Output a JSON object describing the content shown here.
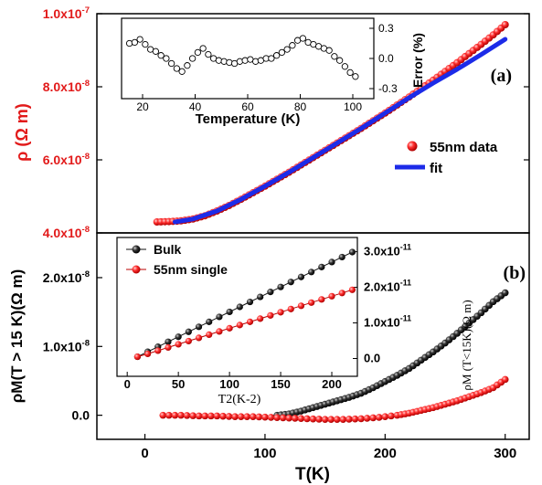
{
  "chart_data": [
    {
      "panel": "(a)",
      "type": "scatter",
      "ylabel": "ρ (Ω m)",
      "y_ticks": [
        "4.0x10-8",
        "6.0x10-8",
        "8.0x10-8",
        "1.0x10-7"
      ],
      "ylim": [
        4e-08,
        1e-07
      ],
      "xlim": [
        -40,
        320
      ],
      "legend": {
        "placement": "right",
        "entries": [
          "55nm data",
          "fit"
        ]
      },
      "series": [
        {
          "name": "55nm data",
          "color": "#ff2a2a",
          "marker": "sphere",
          "x": [
            10,
            20,
            30,
            40,
            50,
            60,
            70,
            80,
            90,
            100,
            110,
            120,
            130,
            140,
            150,
            160,
            170,
            180,
            190,
            200,
            210,
            220,
            230,
            240,
            250,
            260,
            270,
            280,
            290,
            300
          ],
          "y": [
            4.3e-08,
            4.31e-08,
            4.33e-08,
            4.38e-08,
            4.47e-08,
            4.6e-08,
            4.75e-08,
            4.92e-08,
            5.1e-08,
            5.28e-08,
            5.47e-08,
            5.66e-08,
            5.86e-08,
            6.06e-08,
            6.26e-08,
            6.46e-08,
            6.66e-08,
            6.86e-08,
            7.07e-08,
            7.28e-08,
            7.5e-08,
            7.72e-08,
            7.95e-08,
            8.18e-08,
            8.42e-08,
            8.66e-08,
            8.91e-08,
            9.16e-08,
            9.42e-08,
            9.7e-08
          ]
        },
        {
          "name": "fit",
          "color": "#1c2be8",
          "marker": "line",
          "x": [
            25,
            40,
            60,
            80,
            100,
            120,
            140,
            160,
            180,
            200,
            220,
            240,
            260,
            280,
            300
          ],
          "y": [
            4.3e-08,
            4.38e-08,
            4.6e-08,
            4.92e-08,
            5.28e-08,
            5.66e-08,
            6.06e-08,
            6.46e-08,
            6.86e-08,
            7.28e-08,
            7.7e-08,
            8.1e-08,
            8.48e-08,
            8.88e-08,
            9.3e-08
          ]
        }
      ],
      "inset": {
        "type": "scatter",
        "xlabel": "Temperature (K)",
        "ylabel": "Error (%)",
        "xlim": [
          12,
          108
        ],
        "ylim": [
          -0.4,
          0.4
        ],
        "x_ticks": [
          "20",
          "40",
          "60",
          "80",
          "100"
        ],
        "y_ticks": [
          "0.3",
          "0.0",
          "-0.3"
        ],
        "x": [
          15,
          17,
          19,
          21,
          23,
          25,
          27,
          29,
          31,
          33,
          35,
          37,
          39,
          41,
          43,
          45,
          47,
          49,
          51,
          53,
          55,
          57,
          59,
          61,
          63,
          65,
          67,
          69,
          71,
          73,
          75,
          77,
          79,
          81,
          83,
          85,
          87,
          89,
          91,
          93,
          95,
          97,
          99,
          101
        ],
        "y": [
          0.15,
          0.16,
          0.19,
          0.14,
          0.09,
          0.07,
          0.03,
          0.0,
          -0.05,
          -0.1,
          -0.13,
          -0.07,
          0.0,
          0.06,
          0.1,
          0.04,
          0.0,
          -0.02,
          -0.03,
          -0.04,
          -0.05,
          -0.03,
          -0.02,
          -0.01,
          -0.03,
          -0.02,
          0.0,
          0.0,
          0.03,
          0.06,
          0.09,
          0.13,
          0.18,
          0.2,
          0.16,
          0.14,
          0.12,
          0.1,
          0.08,
          0.02,
          -0.02,
          -0.08,
          -0.14,
          -0.18
        ]
      }
    },
    {
      "panel": "(b)",
      "type": "scatter",
      "xlabel": "T(K)",
      "ylabel": "ρM(T > 15 K)(Ω m)",
      "x_ticks": [
        "0",
        "100",
        "200",
        "300"
      ],
      "y_ticks": [
        "0.0",
        "1.0x10-8",
        "2.0x10-8"
      ],
      "xlim": [
        -40,
        320
      ],
      "ylim": [
        -3.5e-09,
        2.65e-08
      ],
      "series": [
        {
          "name": "Bulk",
          "color": "#111111",
          "x": [
            110,
            120,
            130,
            140,
            150,
            160,
            170,
            180,
            190,
            200,
            210,
            220,
            230,
            240,
            250,
            260,
            270,
            280,
            290,
            300
          ],
          "y": [
            0.0,
            2e-10,
            6e-10,
            1.1e-09,
            1.6e-09,
            2.1e-09,
            2.6e-09,
            3.2e-09,
            4e-09,
            4.9e-09,
            5.8e-09,
            6.8e-09,
            8e-09,
            9.2e-09,
            1.05e-08,
            1.19e-08,
            1.34e-08,
            1.49e-08,
            1.65e-08,
            1.78e-08
          ]
        },
        {
          "name": "55nm single",
          "color": "#ff2a2a",
          "x": [
            15,
            30,
            45,
            60,
            75,
            90,
            105,
            120,
            135,
            150,
            165,
            180,
            195,
            210,
            220,
            230,
            240,
            250,
            260,
            270,
            280,
            290,
            300
          ],
          "y": [
            0.0,
            0.0,
            -1e-10,
            -1e-10,
            -2e-10,
            -2e-10,
            -3e-10,
            -4e-10,
            -5e-10,
            -6e-10,
            -6e-10,
            -5e-10,
            -3e-10,
            0.0,
            3e-10,
            7e-10,
            1.1e-09,
            1.6e-09,
            2.1e-09,
            2.7e-09,
            3.3e-09,
            4e-09,
            5.2e-09
          ]
        }
      ],
      "inset": {
        "type": "scatter",
        "xlabel": "T2(K-2)",
        "ylabel": "ρM (T<15K)(Ω m)",
        "legend": {
          "placement": "top-left",
          "entries": [
            "Bulk",
            "55nm single"
          ]
        },
        "xlim": [
          -10,
          225
        ],
        "ylim": [
          -5e-12,
          3.4e-11
        ],
        "x_ticks": [
          "0",
          "50",
          "100",
          "150",
          "200"
        ],
        "y_ticks": [
          "0.0",
          "1.0x10-11",
          "2.0x10-11",
          "3.0x10-11"
        ],
        "series": [
          {
            "name": "Bulk",
            "color": "#111111",
            "x": [
              10,
              20,
              30,
              40,
              50,
              60,
              70,
              80,
              90,
              100,
              110,
              120,
              130,
              140,
              150,
              160,
              170,
              180,
              190,
              200,
              210,
              220
            ],
            "y": [
              5e-13,
              1.9e-12,
              3.3e-12,
              4.7e-12,
              6.1e-12,
              7.5e-12,
              8.9e-12,
              1.03e-11,
              1.17e-11,
              1.31e-11,
              1.45e-11,
              1.59e-11,
              1.73e-11,
              1.87e-11,
              2.01e-11,
              2.15e-11,
              2.29e-11,
              2.43e-11,
              2.57e-11,
              2.71e-11,
              2.85e-11,
              2.99e-11
            ]
          },
          {
            "name": "55nm single",
            "color": "#ff2a2a",
            "x": [
              10,
              20,
              30,
              40,
              50,
              60,
              70,
              80,
              90,
              100,
              110,
              120,
              130,
              140,
              150,
              160,
              170,
              180,
              190,
              200,
              210,
              220
            ],
            "y": [
              5e-13,
              1.3e-12,
              2.2e-12,
              3.1e-12,
              4e-12,
              4.9e-12,
              5.8e-12,
              6.7e-12,
              7.6e-12,
              8.5e-12,
              9.4e-12,
              1.03e-11,
              1.12e-11,
              1.21e-11,
              1.3e-11,
              1.39e-11,
              1.48e-11,
              1.57e-11,
              1.66e-11,
              1.75e-11,
              1.84e-11,
              1.93e-11
            ]
          }
        ]
      }
    }
  ]
}
